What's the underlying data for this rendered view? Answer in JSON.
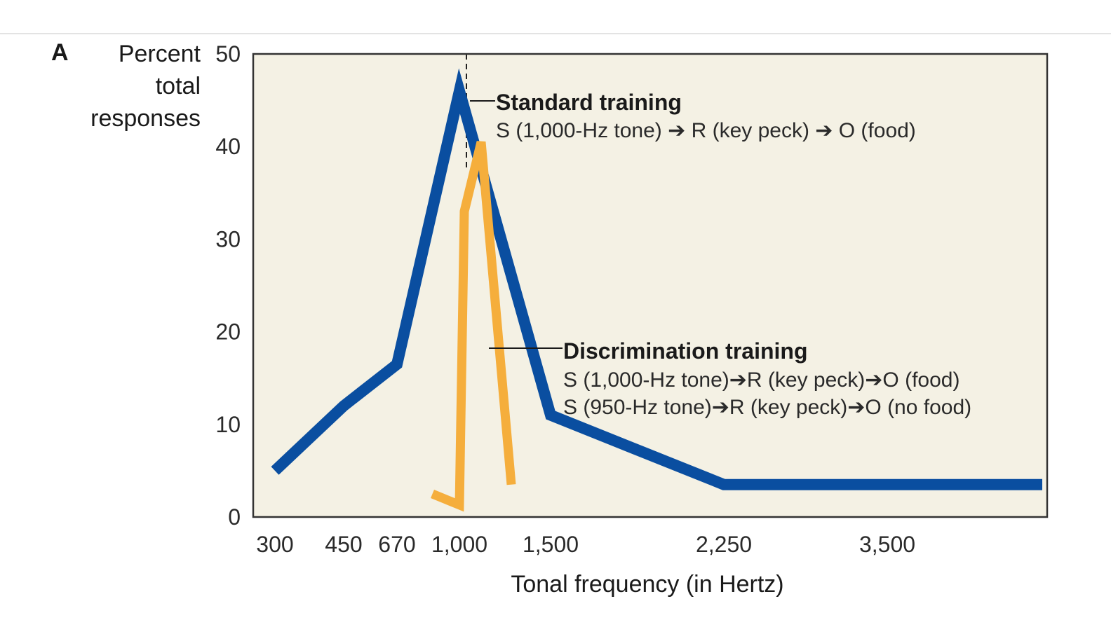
{
  "chart_data": {
    "type": "line",
    "panel_label": "A",
    "ylabel": [
      "Percent",
      "total",
      "responses"
    ],
    "xlabel": "Tonal frequency (in Hertz)",
    "ylim": [
      0,
      50
    ],
    "yticks": [
      "0",
      "10",
      "20",
      "30",
      "40",
      "50"
    ],
    "xticks": [
      {
        "label": "300",
        "value": 300
      },
      {
        "label": "450",
        "value": 450
      },
      {
        "label": "670",
        "value": 670
      },
      {
        "label": "1,000",
        "value": 1000
      },
      {
        "label": "1,500",
        "value": 1500
      },
      {
        "label": "2,250",
        "value": 2250
      },
      {
        "label": "3,500",
        "value": 3500
      }
    ],
    "reference_line_x": 1000,
    "colors": {
      "plot_background": "#f4f1e4",
      "standard": "#0a4ea0",
      "discrimination": "#f5ae3c",
      "frame": "#333333"
    },
    "series": [
      {
        "id": "standard",
        "points": [
          [
            300,
            5
          ],
          [
            450,
            12
          ],
          [
            670,
            16.5
          ],
          [
            1000,
            46
          ],
          [
            1500,
            11
          ],
          [
            2250,
            3.5
          ],
          [
            4800,
            3.5
          ]
        ],
        "annotation": {
          "title": "Standard training",
          "lines": [
            "S (1,000-Hz tone) ➔ R (key peck) ➔ O (food)"
          ]
        }
      },
      {
        "id": "discrimination",
        "points": [
          [
            950,
            2.5
          ],
          [
            1000,
            1.3
          ],
          [
            1000,
            33
          ],
          [
            1050,
            40.5
          ],
          [
            1100,
            3.5
          ]
        ],
        "annotation": {
          "title": "Discrimination training",
          "lines": [
            "S (1,000-Hz tone)➔R (key peck)➔O (food)",
            "S (950-Hz tone)➔R (key peck)➔O (no food)"
          ]
        }
      }
    ]
  }
}
